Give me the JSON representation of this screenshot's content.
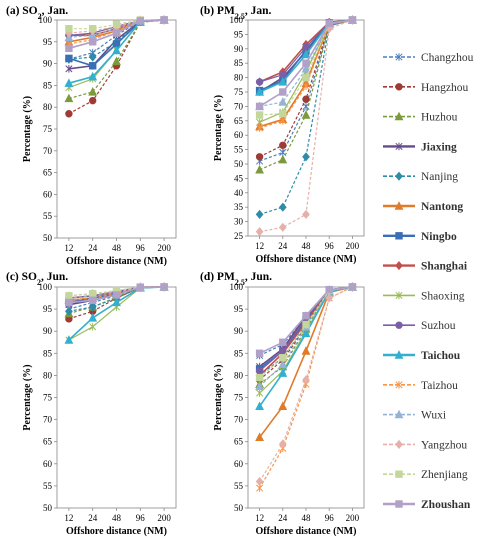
{
  "categories": [
    "12",
    "24",
    "48",
    "96",
    "200"
  ],
  "xlabel": "Offshore  distance (NM)",
  "ylabel": "Percentage (%)",
  "yticks": [
    50,
    55,
    60,
    65,
    70,
    75,
    80,
    85,
    90,
    95,
    100
  ],
  "legend_placement": "right",
  "legend": [
    {
      "name": "Changzhou",
      "color": "#4A7EBB",
      "marker": "asterisk",
      "dash": true,
      "bold": false,
      "fill": false
    },
    {
      "name": "Hangzhou",
      "color": "#A03A35",
      "marker": "circle",
      "dash": true,
      "bold": false,
      "fill": true
    },
    {
      "name": "Huzhou",
      "color": "#7C9A3B",
      "marker": "triangle",
      "dash": true,
      "bold": false,
      "fill": true
    },
    {
      "name": "Jiaxing",
      "color": "#664A8C",
      "marker": "asterisk",
      "dash": false,
      "bold": true,
      "fill": false
    },
    {
      "name": "Nanjing",
      "color": "#2F8CA8",
      "marker": "diamond",
      "dash": true,
      "bold": false,
      "fill": true
    },
    {
      "name": "Nantong",
      "color": "#E07B2A",
      "marker": "triangle",
      "dash": false,
      "bold": true,
      "fill": true
    },
    {
      "name": "Ningbo",
      "color": "#3A6FB5",
      "marker": "square",
      "dash": false,
      "bold": true,
      "fill": true
    },
    {
      "name": "Shanghai",
      "color": "#C0504D",
      "marker": "diamond",
      "dash": false,
      "bold": true,
      "fill": true
    },
    {
      "name": "Shaoxing",
      "color": "#9BBB59",
      "marker": "asterisk",
      "dash": false,
      "bold": false,
      "fill": false
    },
    {
      "name": "Suzhou",
      "color": "#7A5FA6",
      "marker": "circle",
      "dash": false,
      "bold": false,
      "fill": true
    },
    {
      "name": "Taichou",
      "color": "#33B0D0",
      "marker": "triangle",
      "dash": false,
      "bold": true,
      "fill": true
    },
    {
      "name": "Taizhou",
      "color": "#F79646",
      "marker": "asterisk",
      "dash": true,
      "bold": false,
      "fill": false
    },
    {
      "name": "Wuxi",
      "color": "#95B3D7",
      "marker": "triangle",
      "dash": true,
      "bold": false,
      "fill": true
    },
    {
      "name": "Yangzhou",
      "color": "#E6B0AA",
      "marker": "diamond",
      "dash": true,
      "bold": false,
      "fill": true
    },
    {
      "name": "Zhenjiang",
      "color": "#C4D79B",
      "marker": "square",
      "dash": true,
      "bold": false,
      "fill": true
    },
    {
      "name": "Zhoushan",
      "color": "#B1A0C7",
      "marker": "square",
      "dash": false,
      "bold": true,
      "fill": true
    }
  ],
  "chart_data": [
    {
      "type": "line",
      "title_main": "(a) SO",
      "title_sub": "2",
      "title_rest": ", Jan.",
      "ylim": [
        50,
        100
      ],
      "series": [
        {
          "name": "Changzhou",
          "values": [
            91,
            92.5,
            96.5,
            99.8,
            100
          ]
        },
        {
          "name": "Hangzhou",
          "values": [
            78.5,
            81.5,
            89.5,
            99.5,
            100
          ]
        },
        {
          "name": "Huzhou",
          "values": [
            82,
            83.5,
            90.5,
            99.5,
            100
          ]
        },
        {
          "name": "Jiaxing",
          "values": [
            88.8,
            89.5,
            95.5,
            99.7,
            100
          ]
        },
        {
          "name": "Nanjing",
          "values": [
            91,
            91.5,
            95,
            99.8,
            100
          ]
        },
        {
          "name": "Nantong",
          "values": [
            95,
            96,
            97.5,
            99.9,
            100
          ]
        },
        {
          "name": "Ningbo",
          "values": [
            91.2,
            89.5,
            94.5,
            99.7,
            100
          ]
        },
        {
          "name": "Shanghai",
          "values": [
            96.5,
            96.5,
            98,
            99.9,
            100
          ]
        },
        {
          "name": "Shaoxing",
          "values": [
            84.5,
            86.5,
            93,
            99.6,
            100
          ]
        },
        {
          "name": "Suzhou",
          "values": [
            96.5,
            97,
            98.5,
            99.9,
            100
          ]
        },
        {
          "name": "Taichou",
          "values": [
            85.5,
            87,
            93,
            99.6,
            100
          ]
        },
        {
          "name": "Taizhou",
          "values": [
            94.5,
            95.5,
            97.5,
            99.9,
            100
          ]
        },
        {
          "name": "Wuxi",
          "values": [
            96,
            96.5,
            98,
            99.9,
            100
          ]
        },
        {
          "name": "Yangzhou",
          "values": [
            97,
            97.5,
            98.5,
            99.9,
            100
          ]
        },
        {
          "name": "Zhenjiang",
          "values": [
            98,
            98,
            99,
            100,
            100
          ]
        },
        {
          "name": "Zhoushan",
          "values": [
            93.5,
            95,
            97,
            99.8,
            100
          ]
        }
      ]
    },
    {
      "type": "line",
      "title_main": "(b) PM",
      "title_sub": "2.5",
      "title_rest": ", Jan.",
      "ylim": [
        25,
        100
      ],
      "series": [
        {
          "name": "Changzhou",
          "values": [
            51,
            54,
            70,
            98,
            100
          ]
        },
        {
          "name": "Hangzhou",
          "values": [
            52.5,
            56.5,
            72.5,
            98.5,
            100
          ]
        },
        {
          "name": "Huzhou",
          "values": [
            48,
            51.5,
            67,
            98,
            100
          ]
        },
        {
          "name": "Jiaxing",
          "values": [
            75,
            80,
            89,
            99,
            100
          ]
        },
        {
          "name": "Nanjing",
          "values": [
            32.5,
            35,
            52.5,
            98,
            100
          ]
        },
        {
          "name": "Nantong",
          "values": [
            63,
            65.5,
            78,
            98.5,
            100
          ]
        },
        {
          "name": "Ningbo",
          "values": [
            75.5,
            79,
            89.5,
            99,
            100
          ]
        },
        {
          "name": "Shanghai",
          "values": [
            78.5,
            82,
            91.5,
            99.2,
            100
          ]
        },
        {
          "name": "Shaoxing",
          "values": [
            64.5,
            68,
            82,
            98.7,
            100
          ]
        },
        {
          "name": "Suzhou",
          "values": [
            78.5,
            81,
            90.5,
            99.2,
            100
          ]
        },
        {
          "name": "Taichou",
          "values": [
            75,
            78.5,
            88,
            99,
            100
          ]
        },
        {
          "name": "Taizhou",
          "values": [
            62.5,
            65,
            77,
            98.5,
            100
          ]
        },
        {
          "name": "Wuxi",
          "values": [
            70,
            71.5,
            83,
            98.8,
            100
          ]
        },
        {
          "name": "Yangzhou",
          "values": [
            26.5,
            28,
            32.5,
            97,
            100
          ]
        },
        {
          "name": "Zhenjiang",
          "values": [
            67,
            67.5,
            80,
            98.7,
            100
          ]
        },
        {
          "name": "Zhoushan",
          "values": [
            70,
            75,
            85,
            98.8,
            100
          ]
        }
      ]
    },
    {
      "type": "line",
      "title_main": "(c) SO",
      "title_sub": "2",
      "title_rest": ", Jun.",
      "ylim": [
        50,
        100
      ],
      "series": [
        {
          "name": "Changzhou",
          "values": [
            95,
            96.5,
            98,
            99.9,
            100
          ]
        },
        {
          "name": "Hangzhou",
          "values": [
            92.8,
            94.5,
            97.5,
            99.9,
            100
          ]
        },
        {
          "name": "Huzhou",
          "values": [
            94,
            95.5,
            97.7,
            99.9,
            100
          ]
        },
        {
          "name": "Jiaxing",
          "values": [
            96,
            97,
            98.3,
            99.9,
            100
          ]
        },
        {
          "name": "Nanjing",
          "values": [
            94.5,
            95.5,
            97.5,
            99.9,
            100
          ]
        },
        {
          "name": "Nantong",
          "values": [
            97,
            97.5,
            98.7,
            99.9,
            100
          ]
        },
        {
          "name": "Ningbo",
          "values": [
            96.5,
            97.5,
            98.5,
            99.9,
            100
          ]
        },
        {
          "name": "Shanghai",
          "values": [
            97.5,
            98,
            98.8,
            100,
            100
          ]
        },
        {
          "name": "Shaoxing",
          "values": [
            88,
            91,
            95.5,
            99.8,
            100
          ]
        },
        {
          "name": "Suzhou",
          "values": [
            97.5,
            98,
            99,
            100,
            100
          ]
        },
        {
          "name": "Taichou",
          "values": [
            88,
            93,
            96.5,
            99.8,
            100
          ]
        },
        {
          "name": "Taizhou",
          "values": [
            97,
            97.5,
            98.5,
            99.9,
            100
          ]
        },
        {
          "name": "Wuxi",
          "values": [
            97.5,
            98,
            98.8,
            100,
            100
          ]
        },
        {
          "name": "Yangzhou",
          "values": [
            98,
            98.5,
            99,
            100,
            100
          ]
        },
        {
          "name": "Zhenjiang",
          "values": [
            98,
            98.5,
            99.2,
            100,
            100
          ]
        },
        {
          "name": "Zhoushan",
          "values": [
            96.5,
            97,
            98.2,
            99.9,
            100
          ]
        }
      ]
    },
    {
      "type": "line",
      "title_main": "(d) PM",
      "title_sub": "2.5",
      "title_rest": ", Jun.",
      "ylim": [
        50,
        100
      ],
      "series": [
        {
          "name": "Changzhou",
          "values": [
            84.5,
            87,
            93,
            99.3,
            100
          ]
        },
        {
          "name": "Hangzhou",
          "values": [
            79,
            83.5,
            91,
            99.2,
            100
          ]
        },
        {
          "name": "Huzhou",
          "values": [
            78,
            82,
            90.5,
            99.2,
            100
          ]
        },
        {
          "name": "Jiaxing",
          "values": [
            82,
            86,
            93.5,
            99.4,
            100
          ]
        },
        {
          "name": "Nanjing",
          "values": [
            80,
            84,
            91.5,
            99.2,
            100
          ]
        },
        {
          "name": "Nantong",
          "values": [
            66,
            73,
            85.5,
            98.8,
            100
          ]
        },
        {
          "name": "Ningbo",
          "values": [
            81.5,
            85.5,
            92.5,
            99.3,
            100
          ]
        },
        {
          "name": "Shanghai",
          "values": [
            80,
            85,
            92,
            99.3,
            100
          ]
        },
        {
          "name": "Shaoxing",
          "values": [
            76,
            81,
            90,
            99.1,
            100
          ]
        },
        {
          "name": "Suzhou",
          "values": [
            81,
            85.5,
            93,
            99.4,
            100
          ]
        },
        {
          "name": "Taichou",
          "values": [
            73,
            80.5,
            89.5,
            99,
            100
          ]
        },
        {
          "name": "Taizhou",
          "values": [
            54.5,
            63.5,
            78,
            97.5,
            100
          ]
        },
        {
          "name": "Wuxi",
          "values": [
            77.5,
            82.5,
            91,
            99.2,
            100
          ]
        },
        {
          "name": "Yangzhou",
          "values": [
            56,
            64.5,
            79,
            97.5,
            100
          ]
        },
        {
          "name": "Zhenjiang",
          "values": [
            79.5,
            84,
            91.5,
            99.2,
            100
          ]
        },
        {
          "name": "Zhoushan",
          "values": [
            85,
            87.5,
            93.5,
            99.4,
            100
          ]
        }
      ]
    }
  ]
}
